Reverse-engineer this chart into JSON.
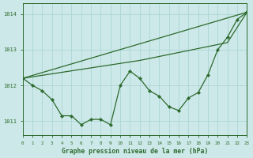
{
  "title": "Graphe pression niveau de la mer (hPa)",
  "bg_color": "#cce8e8",
  "grid_color": "#b0d8d8",
  "line_color": "#2d6a2d",
  "xlim": [
    0,
    23
  ],
  "ylim": [
    1010.6,
    1014.3
  ],
  "yticks": [
    1011,
    1012,
    1013,
    1014
  ],
  "xticks": [
    0,
    1,
    2,
    3,
    4,
    5,
    6,
    7,
    8,
    9,
    10,
    11,
    12,
    13,
    14,
    15,
    16,
    17,
    18,
    19,
    20,
    21,
    22,
    23
  ],
  "series_main": {
    "x": [
      0,
      1,
      2,
      3,
      4,
      5,
      6,
      7,
      8,
      9,
      10,
      11,
      12,
      13,
      14,
      15,
      16,
      17,
      18,
      19,
      20,
      21,
      22,
      23
    ],
    "y": [
      1012.2,
      1012.0,
      1011.85,
      1011.6,
      1011.15,
      1011.15,
      1010.9,
      1011.05,
      1011.05,
      1010.9,
      1012.0,
      1012.4,
      1012.2,
      1011.85,
      1011.7,
      1011.4,
      1011.3,
      1011.65,
      1011.8,
      1012.3,
      1013.0,
      1013.35,
      1013.85,
      1014.05
    ]
  },
  "series_upper": {
    "x": [
      0,
      12,
      21,
      23
    ],
    "y": [
      1012.2,
      1012.7,
      1013.2,
      1014.05
    ]
  },
  "series_lower": {
    "x": [
      0,
      23
    ],
    "y": [
      1012.2,
      1014.05
    ]
  }
}
